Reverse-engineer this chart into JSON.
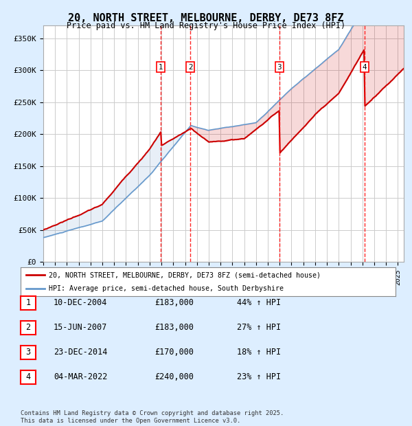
{
  "title": "20, NORTH STREET, MELBOURNE, DERBY, DE73 8FZ",
  "subtitle": "Price paid vs. HM Land Registry's House Price Index (HPI)",
  "ylabel_ticks": [
    "£0",
    "£50K",
    "£100K",
    "£150K",
    "£200K",
    "£250K",
    "£300K",
    "£350K"
  ],
  "ylim": [
    0,
    370000
  ],
  "xlim_start": 1995.0,
  "xlim_end": 2025.5,
  "legend_line1": "20, NORTH STREET, MELBOURNE, DERBY, DE73 8FZ (semi-detached house)",
  "legend_line2": "HPI: Average price, semi-detached house, South Derbyshire",
  "transactions": [
    {
      "num": 1,
      "date": "10-DEC-2004",
      "price": "£183,000",
      "hpi": "44% ↑ HPI",
      "year": 2004.94
    },
    {
      "num": 2,
      "date": "15-JUN-2007",
      "price": "£183,000",
      "hpi": "27% ↑ HPI",
      "year": 2007.45
    },
    {
      "num": 3,
      "date": "23-DEC-2014",
      "price": "£170,000",
      "hpi": "18% ↑ HPI",
      "year": 2014.98
    },
    {
      "num": 4,
      "date": "04-MAR-2022",
      "price": "£240,000",
      "hpi": "23% ↑ HPI",
      "year": 2022.17
    }
  ],
  "footer": "Contains HM Land Registry data © Crown copyright and database right 2025.\nThis data is licensed under the Open Government Licence v3.0.",
  "line_color_red": "#cc0000",
  "line_color_blue": "#6699cc",
  "background_color": "#ddeeff",
  "plot_bg": "#ffffff",
  "grid_color": "#cccccc"
}
